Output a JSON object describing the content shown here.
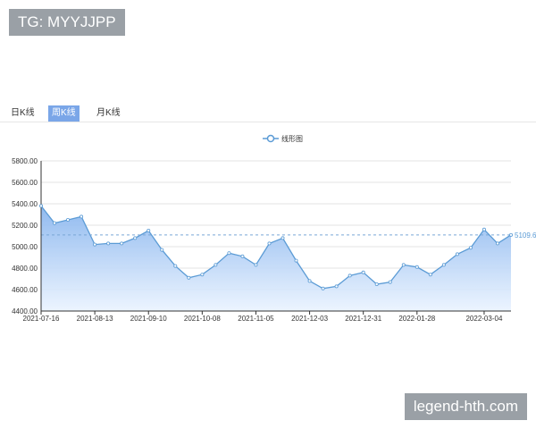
{
  "tag": {
    "text": "TG: MYYJJPP"
  },
  "tabs": [
    {
      "label": "日K线",
      "active": false
    },
    {
      "label": "周K线",
      "active": true
    },
    {
      "label": "月K线",
      "active": false
    }
  ],
  "watermark": {
    "text": "legend-hth.com"
  },
  "colors": {
    "line": "#5b9bd5",
    "fill_top": "#8ab6ee",
    "active_tab": "#7aa6e8"
  },
  "chart_data": {
    "type": "area",
    "legend": [
      "线形图"
    ],
    "x": [
      "2021-07-16",
      "2021-07-23",
      "2021-07-30",
      "2021-08-06",
      "2021-08-13",
      "2021-08-20",
      "2021-08-27",
      "2021-09-03",
      "2021-09-10",
      "2021-09-17",
      "2021-09-24",
      "2021-10-01",
      "2021-10-08",
      "2021-10-15",
      "2021-10-22",
      "2021-10-29",
      "2021-11-05",
      "2021-11-12",
      "2021-11-19",
      "2021-11-26",
      "2021-12-03",
      "2021-12-10",
      "2021-12-17",
      "2021-12-24",
      "2021-12-31",
      "2022-01-07",
      "2022-01-14",
      "2022-01-21",
      "2022-01-28",
      "2022-02-04",
      "2022-02-11",
      "2022-02-18",
      "2022-02-25",
      "2022-03-04",
      "2022-03-11",
      "2022-03-18"
    ],
    "xtick_labels": [
      "2021-07-16",
      "2021-08-13",
      "2021-09-10",
      "2021-10-08",
      "2021-11-05",
      "2021-12-03",
      "2021-12-31",
      "2022-01-28",
      "2022-03-04"
    ],
    "series": [
      {
        "name": "线形图",
        "values": [
          5380,
          5220,
          5250,
          5280,
          5020,
          5030,
          5030,
          5080,
          5150,
          4970,
          4820,
          4710,
          4740,
          4830,
          4940,
          4910,
          4830,
          5030,
          5080,
          4870,
          4680,
          4610,
          4630,
          4730,
          4760,
          4650,
          4670,
          4830,
          4810,
          4740,
          4830,
          4930,
          4990,
          5160,
          5030,
          5109.6
        ]
      }
    ],
    "ylim": [
      4400,
      5800
    ],
    "yticks": [
      "4400.00",
      "4600.00",
      "4800.00",
      "5000.00",
      "5200.00",
      "5400.00",
      "5600.00",
      "5800.00"
    ],
    "reference_line": {
      "value": 5109.6,
      "label": "5109.6"
    },
    "grid": true
  }
}
